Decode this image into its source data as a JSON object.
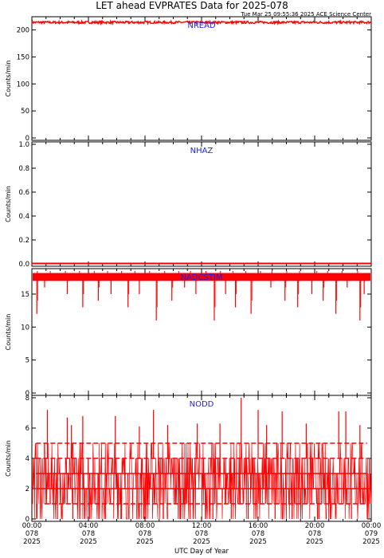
{
  "title": "LET ahead EVPRATES Data for 2025-078",
  "timestamp": "Tue Mar 25 09:55:36 2025 ACE Science Center",
  "xlabel": "UTC Day of Year",
  "colors": {
    "trace": "#ff0000",
    "panel_label": "#1d1df0",
    "axes": "#000000"
  },
  "x_ticks": [
    {
      "time": "00:00",
      "doy": "078",
      "year": "2025"
    },
    {
      "time": "04:00",
      "doy": "078",
      "year": "2025"
    },
    {
      "time": "08:00",
      "doy": "078",
      "year": "2025"
    },
    {
      "time": "12:00",
      "doy": "078",
      "year": "2025"
    },
    {
      "time": "16:00",
      "doy": "078",
      "year": "2025"
    },
    {
      "time": "20:00",
      "doy": "078",
      "year": "2025"
    },
    {
      "time": "00:00",
      "doy": "079",
      "year": "2025"
    }
  ],
  "chart_data": [
    {
      "type": "line",
      "name": "NREAD",
      "ylabel": "Counts/min",
      "ylim": [
        0,
        220
      ],
      "yticks": [
        0,
        50,
        100,
        150,
        200
      ],
      "xlim_hours": [
        0,
        24
      ],
      "baseline": 214,
      "noise": 2,
      "dips": [],
      "lines": []
    },
    {
      "type": "line",
      "name": "NHAZ",
      "ylabel": "Counts/min",
      "ylim": [
        0,
        1.0
      ],
      "yticks": [
        0.0,
        0.2,
        0.4,
        0.6,
        0.8,
        1.0
      ],
      "xlim_hours": [
        0,
        24
      ],
      "baseline": 0,
      "noise": 0,
      "dips": [],
      "lines": []
    },
    {
      "type": "line",
      "name": "NADCSTIM",
      "ylabel": "Counts/min",
      "ylim": [
        0,
        18.5
      ],
      "yticks": [
        0,
        5,
        10,
        15
      ],
      "xlim_hours": [
        0,
        24
      ],
      "baseline": 17.5,
      "noise": 1,
      "dips": [
        {
          "x": 0.35,
          "y": 12
        },
        {
          "x": 0.9,
          "y": 16
        },
        {
          "x": 2.5,
          "y": 15
        },
        {
          "x": 3.6,
          "y": 13
        },
        {
          "x": 4.7,
          "y": 14
        },
        {
          "x": 5.6,
          "y": 15
        },
        {
          "x": 6.8,
          "y": 13
        },
        {
          "x": 7.6,
          "y": 15
        },
        {
          "x": 8.8,
          "y": 11
        },
        {
          "x": 9.9,
          "y": 14
        },
        {
          "x": 10.8,
          "y": 16
        },
        {
          "x": 11.6,
          "y": 15
        },
        {
          "x": 12.9,
          "y": 11
        },
        {
          "x": 13.7,
          "y": 15
        },
        {
          "x": 14.4,
          "y": 13
        },
        {
          "x": 15.5,
          "y": 12
        },
        {
          "x": 16.9,
          "y": 16
        },
        {
          "x": 17.9,
          "y": 14
        },
        {
          "x": 18.8,
          "y": 13
        },
        {
          "x": 19.8,
          "y": 15
        },
        {
          "x": 20.6,
          "y": 14
        },
        {
          "x": 21.5,
          "y": 12
        },
        {
          "x": 22.3,
          "y": 16
        },
        {
          "x": 23.2,
          "y": 11
        },
        {
          "x": 23.5,
          "y": 15
        }
      ],
      "lines": []
    },
    {
      "type": "line",
      "name": "NODD",
      "ylabel": "Counts/min",
      "ylim": [
        0,
        8
      ],
      "yticks": [
        0,
        2,
        4,
        6,
        8
      ],
      "xlim_hours": [
        0,
        24
      ],
      "baseline": 2.5,
      "noise": 0,
      "dips": [],
      "lines": [
        {
          "y": 1,
          "x": [
            0.9,
            23.6
          ],
          "kind": "dash"
        },
        {
          "y": 2,
          "x": [
            0.3,
            23.7
          ],
          "kind": "solid"
        },
        {
          "y": 3,
          "x": [
            0.3,
            23.7
          ],
          "kind": "solid"
        },
        {
          "y": 4,
          "x": [
            0.3,
            23.7
          ],
          "kind": "dash"
        },
        {
          "y": 5,
          "x": [
            0.3,
            23.7
          ],
          "kind": "dash"
        }
      ],
      "spikes": [
        {
          "x": 1.1,
          "y": 7.2
        },
        {
          "x": 2.5,
          "y": 6.7
        },
        {
          "x": 2.8,
          "y": 6.2
        },
        {
          "x": 3.6,
          "y": 6.8
        },
        {
          "x": 5.9,
          "y": 6.8
        },
        {
          "x": 7.6,
          "y": 6.1
        },
        {
          "x": 8.6,
          "y": 7.2
        },
        {
          "x": 9.6,
          "y": 6.2
        },
        {
          "x": 11.7,
          "y": 6.3
        },
        {
          "x": 13.3,
          "y": 6.3
        },
        {
          "x": 14.8,
          "y": 8
        },
        {
          "x": 16.0,
          "y": 7.2
        },
        {
          "x": 16.6,
          "y": 6.2
        },
        {
          "x": 17.7,
          "y": 7.1
        },
        {
          "x": 19.4,
          "y": 6.3
        },
        {
          "x": 21.7,
          "y": 7.1
        },
        {
          "x": 22.2,
          "y": 7.1
        },
        {
          "x": 23.2,
          "y": 6.2
        }
      ],
      "zeros": [
        {
          "x": 1.8,
          "y": 0
        },
        {
          "x": 2.9,
          "y": 0
        },
        {
          "x": 4.1,
          "y": 0
        },
        {
          "x": 5.2,
          "y": 0
        },
        {
          "x": 6.3,
          "y": 0
        },
        {
          "x": 7.9,
          "y": 0
        },
        {
          "x": 9.3,
          "y": 0
        },
        {
          "x": 10.5,
          "y": 0
        },
        {
          "x": 11.2,
          "y": 0
        },
        {
          "x": 12.8,
          "y": 0
        },
        {
          "x": 14.1,
          "y": 0
        },
        {
          "x": 15.3,
          "y": 0
        },
        {
          "x": 17.2,
          "y": 0
        },
        {
          "x": 18.4,
          "y": 0
        },
        {
          "x": 20.3,
          "y": 0
        },
        {
          "x": 21.1,
          "y": 0
        },
        {
          "x": 22.6,
          "y": 0
        }
      ]
    }
  ]
}
